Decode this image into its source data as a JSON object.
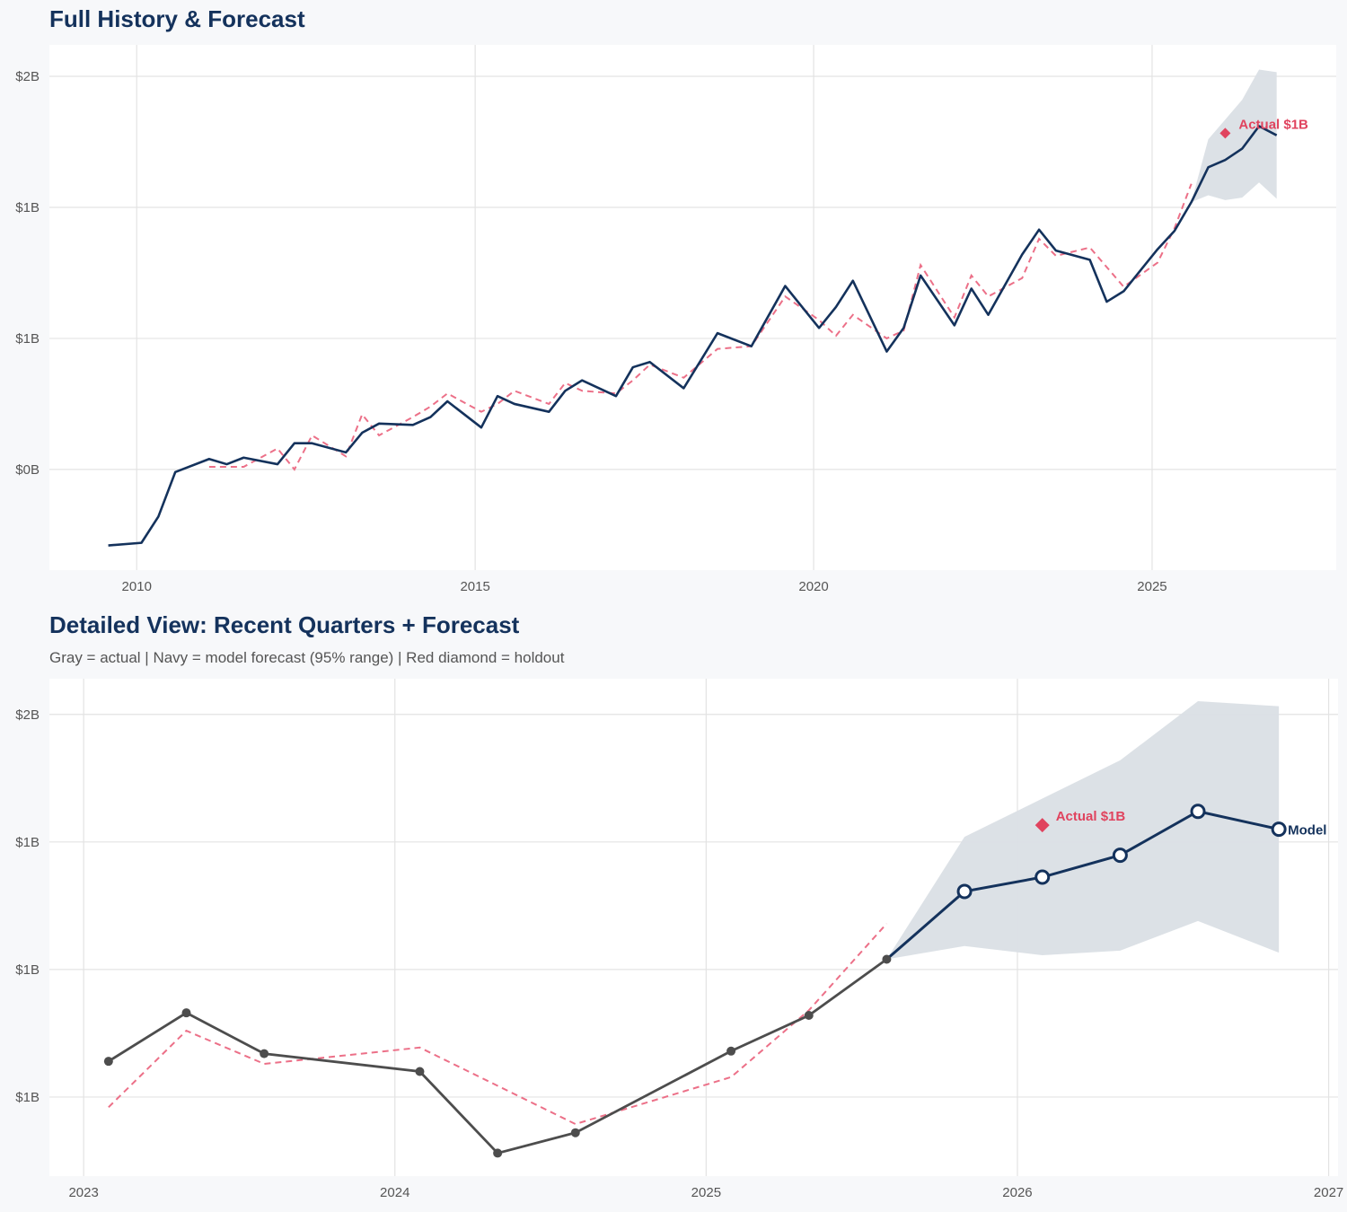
{
  "colors": {
    "navy": "#14325c",
    "fit": "#ec7088",
    "holdout": "#e0435e",
    "actual_gray": "#4d4d4d",
    "band": "#dadfe5",
    "grid": "#e3e3e3",
    "background": "#f7f8fa"
  },
  "chart_data": [
    {
      "type": "line",
      "title": "Full History & Forecast",
      "xlim": [
        2008.71,
        2027.72
      ],
      "ylim": [
        -0.384,
        1.62
      ],
      "xticks": [
        2010,
        2015,
        2020,
        2025
      ],
      "xtick_labels": [
        "2010",
        "2015",
        "2020",
        "2025"
      ],
      "yticks": [
        0,
        0.5,
        1,
        1.5
      ],
      "ytick_labels": [
        "$0B",
        "$1B",
        "$1B",
        "$2B"
      ],
      "grid": true,
      "y_unit": "billions USD",
      "series": {
        "actual": [
          [
            2009.58,
            -0.29
          ],
          [
            2010.07,
            -0.28
          ],
          [
            2010.32,
            -0.18
          ],
          [
            2010.57,
            -0.01
          ],
          [
            2011.07,
            0.04
          ],
          [
            2011.33,
            0.02
          ],
          [
            2011.58,
            0.045
          ],
          [
            2012.08,
            0.02
          ],
          [
            2012.33,
            0.1
          ],
          [
            2012.59,
            0.1
          ],
          [
            2013.09,
            0.065
          ],
          [
            2013.33,
            0.14
          ],
          [
            2013.58,
            0.175
          ],
          [
            2014.08,
            0.17
          ],
          [
            2014.34,
            0.2
          ],
          [
            2014.59,
            0.26
          ],
          [
            2015.09,
            0.16
          ],
          [
            2015.33,
            0.28
          ],
          [
            2015.58,
            0.25
          ],
          [
            2016.09,
            0.22
          ],
          [
            2016.33,
            0.3
          ],
          [
            2016.58,
            0.34
          ],
          [
            2017.08,
            0.28
          ],
          [
            2017.33,
            0.39
          ],
          [
            2017.58,
            0.41
          ],
          [
            2018.08,
            0.31
          ],
          [
            2018.58,
            0.52
          ],
          [
            2019.08,
            0.47
          ],
          [
            2019.58,
            0.7
          ],
          [
            2020.08,
            0.54
          ],
          [
            2020.33,
            0.62
          ],
          [
            2020.58,
            0.72
          ],
          [
            2021.08,
            0.45
          ],
          [
            2021.33,
            0.54
          ],
          [
            2021.58,
            0.74
          ],
          [
            2022.08,
            0.55
          ],
          [
            2022.33,
            0.69
          ],
          [
            2022.58,
            0.59
          ],
          [
            2023.08,
            0.82
          ],
          [
            2023.33,
            0.915
          ],
          [
            2023.58,
            0.835
          ],
          [
            2024.08,
            0.8
          ],
          [
            2024.33,
            0.64
          ],
          [
            2024.58,
            0.68
          ],
          [
            2025.08,
            0.84
          ],
          [
            2025.33,
            0.91
          ],
          [
            2025.58,
            1.02
          ]
        ],
        "fit": [
          [
            2011.07,
            0.01
          ],
          [
            2011.58,
            0.01
          ],
          [
            2012.08,
            0.08
          ],
          [
            2012.33,
            0.0
          ],
          [
            2012.59,
            0.13
          ],
          [
            2013.09,
            0.05
          ],
          [
            2013.33,
            0.21
          ],
          [
            2013.58,
            0.13
          ],
          [
            2014.08,
            0.2
          ],
          [
            2014.34,
            0.24
          ],
          [
            2014.59,
            0.29
          ],
          [
            2015.09,
            0.22
          ],
          [
            2015.33,
            0.25
          ],
          [
            2015.58,
            0.3
          ],
          [
            2016.09,
            0.25
          ],
          [
            2016.33,
            0.33
          ],
          [
            2016.58,
            0.3
          ],
          [
            2017.08,
            0.29
          ],
          [
            2017.33,
            0.34
          ],
          [
            2017.58,
            0.4
          ],
          [
            2018.08,
            0.35
          ],
          [
            2018.58,
            0.46
          ],
          [
            2019.08,
            0.47
          ],
          [
            2019.58,
            0.66
          ],
          [
            2020.08,
            0.57
          ],
          [
            2020.33,
            0.51
          ],
          [
            2020.58,
            0.59
          ],
          [
            2021.08,
            0.5
          ],
          [
            2021.33,
            0.53
          ],
          [
            2021.58,
            0.78
          ],
          [
            2022.08,
            0.58
          ],
          [
            2022.33,
            0.74
          ],
          [
            2022.58,
            0.66
          ],
          [
            2023.08,
            0.73
          ],
          [
            2023.33,
            0.88
          ],
          [
            2023.58,
            0.815
          ],
          [
            2024.08,
            0.847
          ],
          [
            2024.58,
            0.697
          ],
          [
            2025.08,
            0.789
          ],
          [
            2025.33,
            0.92
          ],
          [
            2025.58,
            1.09
          ]
        ],
        "forecast": [
          [
            2025.83,
            1.153
          ],
          [
            2026.08,
            1.181
          ],
          [
            2026.33,
            1.224
          ],
          [
            2026.58,
            1.31
          ],
          [
            2026.84,
            1.275
          ]
        ],
        "band_upper": [
          1.26,
          1.335,
          1.41,
          1.526,
          1.516
        ],
        "band_lower": [
          1.046,
          1.028,
          1.037,
          1.095,
          1.033
        ],
        "holdout": [
          2026.08,
          1.283
        ]
      },
      "annotations": {
        "holdout_label": "Actual $1B"
      }
    },
    {
      "type": "line",
      "title": "Detailed View: Recent Quarters + Forecast",
      "subtitle": "Gray = actual  |  Navy = model forecast (95% range)  |  Red diamond = holdout",
      "xlim": [
        2022.89,
        2027.03
      ],
      "ylim": [
        0.595,
        1.57
      ],
      "xticks": [
        2023,
        2024,
        2025,
        2026,
        2027
      ],
      "xtick_labels": [
        "2023",
        "2024",
        "2025",
        "2026",
        "2027"
      ],
      "yticks": [
        0.75,
        1.0,
        1.25,
        1.5
      ],
      "ytick_labels": [
        "$1B",
        "$1B",
        "$1B",
        "$2B"
      ],
      "grid": true,
      "series": {
        "actual": [
          [
            2023.08,
            0.82
          ],
          [
            2023.33,
            0.915
          ],
          [
            2023.58,
            0.835
          ],
          [
            2024.08,
            0.8
          ],
          [
            2024.33,
            0.64
          ],
          [
            2024.58,
            0.68
          ],
          [
            2025.08,
            0.84
          ],
          [
            2025.33,
            0.91
          ],
          [
            2025.58,
            1.02
          ]
        ],
        "fit": [
          [
            2023.08,
            0.73
          ],
          [
            2023.33,
            0.88
          ],
          [
            2023.58,
            0.815
          ],
          [
            2024.08,
            0.847
          ],
          [
            2024.58,
            0.697
          ],
          [
            2025.08,
            0.789
          ],
          [
            2025.33,
            0.92
          ],
          [
            2025.58,
            1.09
          ]
        ],
        "forecast": [
          [
            2025.83,
            1.153
          ],
          [
            2026.08,
            1.181
          ],
          [
            2026.33,
            1.224
          ],
          [
            2026.58,
            1.31
          ],
          [
            2026.84,
            1.275
          ]
        ],
        "band_upper": [
          1.26,
          1.335,
          1.41,
          1.526,
          1.516
        ],
        "band_lower": [
          1.046,
          1.028,
          1.037,
          1.095,
          1.033
        ],
        "holdout": [
          2026.08,
          1.283
        ]
      },
      "annotations": {
        "holdout_label": "Actual $1B",
        "forecast_label": "Model"
      }
    }
  ]
}
